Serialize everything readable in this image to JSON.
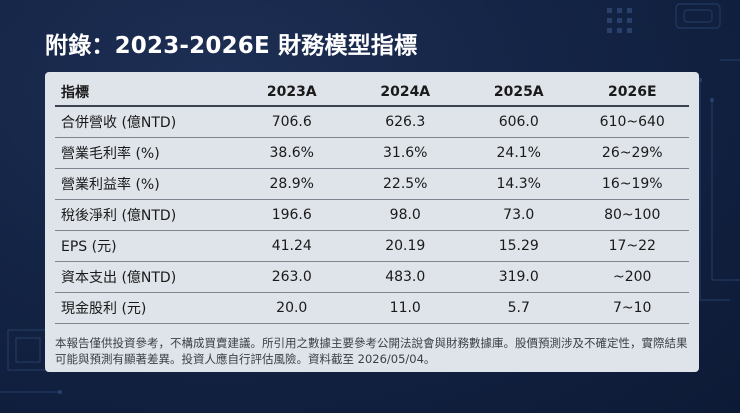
{
  "title": "附錄：2023-2026E 財務模型指標",
  "table": {
    "headers": [
      "指標",
      "2023A",
      "2024A",
      "2025A",
      "2026E"
    ],
    "rows": [
      {
        "label": "合併營收 (億NTD)",
        "values": [
          "706.6",
          "626.3",
          "606.0",
          "610~640"
        ]
      },
      {
        "label": "營業毛利率 (%)",
        "values": [
          "38.6%",
          "31.6%",
          "24.1%",
          "26~29%"
        ]
      },
      {
        "label": "營業利益率 (%)",
        "values": [
          "28.9%",
          "22.5%",
          "14.3%",
          "16~19%"
        ]
      },
      {
        "label": "稅後淨利 (億NTD)",
        "values": [
          "196.6",
          "98.0",
          "73.0",
          "80~100"
        ]
      },
      {
        "label": "EPS (元)",
        "values": [
          "41.24",
          "20.19",
          "15.29",
          "17~22"
        ]
      },
      {
        "label": "資本支出 (億NTD)",
        "values": [
          "263.0",
          "483.0",
          "319.0",
          "~200"
        ]
      },
      {
        "label": "現金股利 (元)",
        "values": [
          "20.0",
          "11.0",
          "5.7",
          "7~10"
        ]
      }
    ]
  },
  "footnote": "本報告僅供投資參考，不構成買賣建議。所引用之數據主要參考公開法說會與財務數據庫。股價預測涉及不確定性，實際結果可能與預測有顯著差異。投資人應自行評估風險。資料截至 2026/05/04。",
  "colors": {
    "background": "#142445",
    "panel": "#dfe4ea",
    "text_dark": "#1a1a1a"
  }
}
